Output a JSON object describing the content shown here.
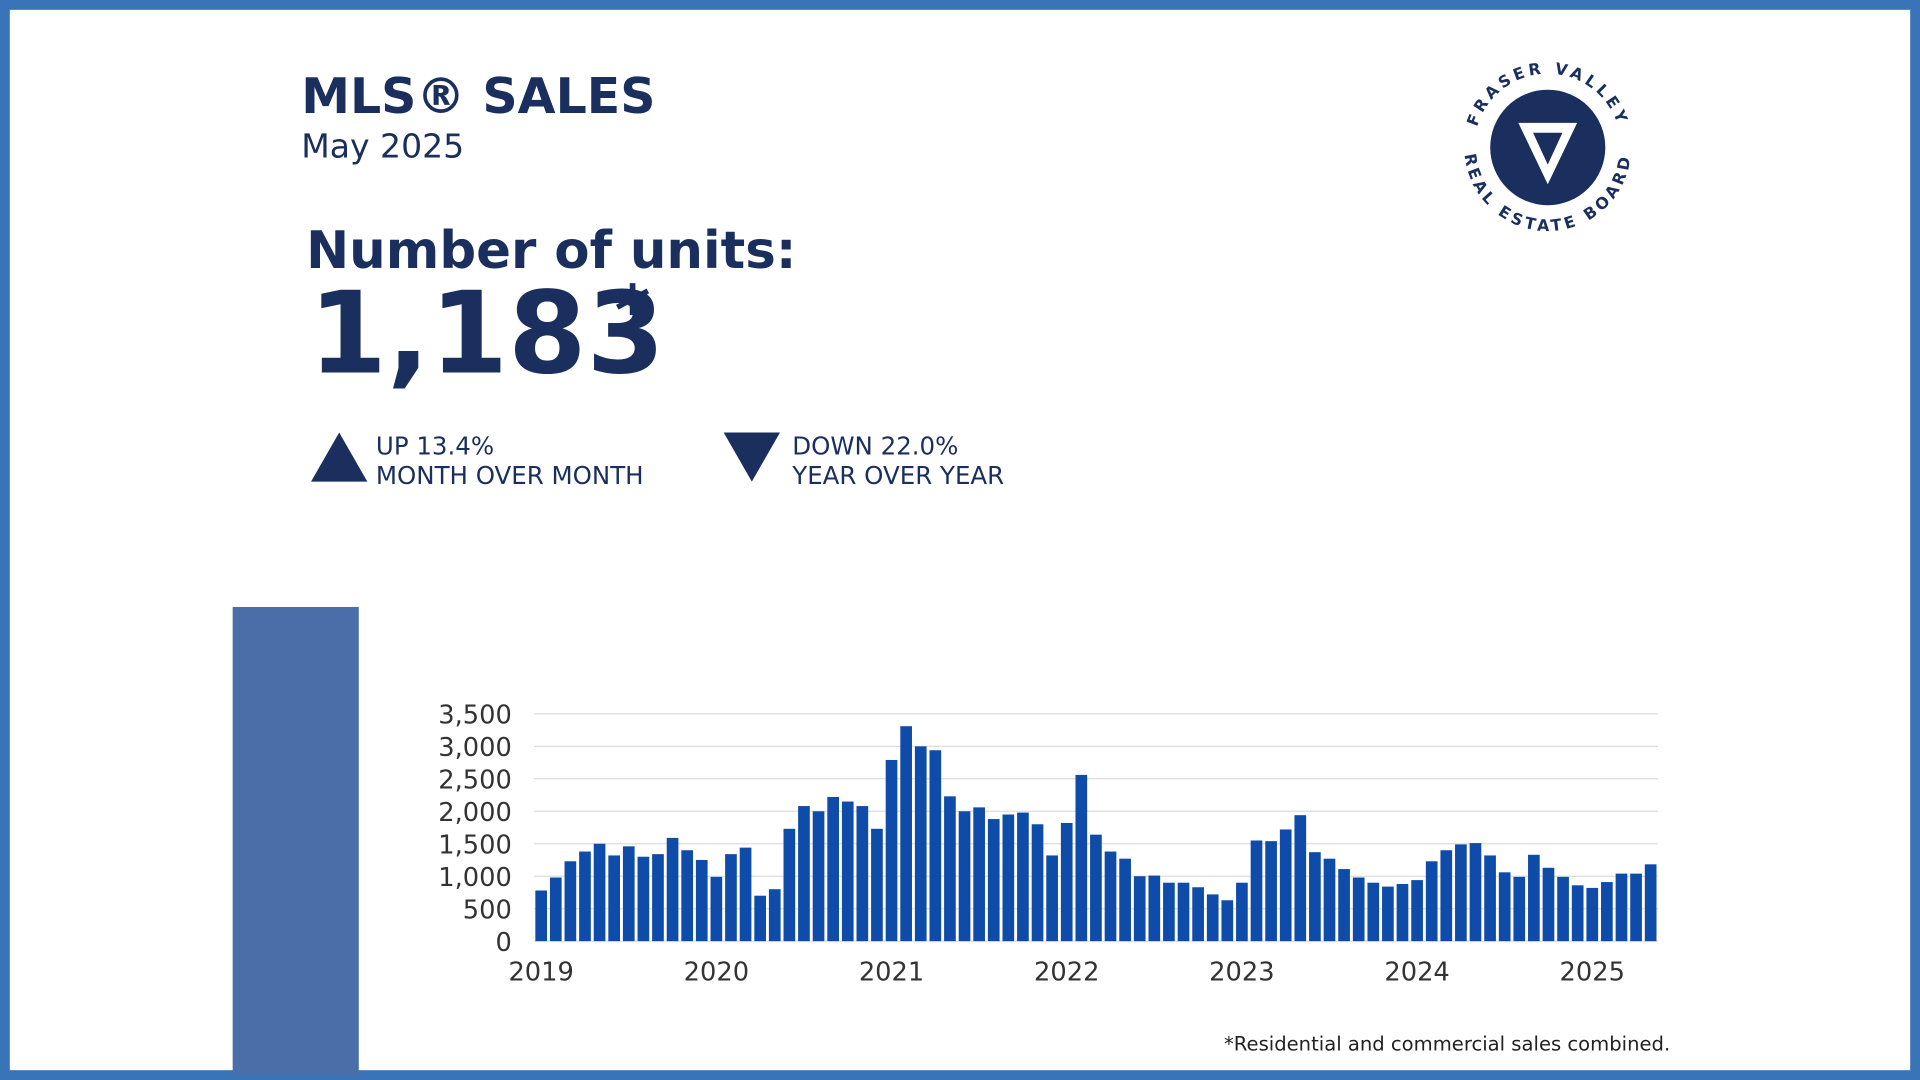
{
  "title": "MLS® SALES",
  "subtitle": "May 2025",
  "units_label": "Number of units:",
  "units_value": "1,183",
  "units_note_mark": "*",
  "stats": [
    {
      "change": "UP 13.4%",
      "period": "MONTH OVER MONTH"
    },
    {
      "change": "DOWN 22.0%",
      "period": "YEAR OVER YEAR"
    }
  ],
  "logo": {
    "top": "FRASER VALLEY",
    "bottom": "REAL ESTATE BOARD"
  },
  "footnote": "*Residential and commercial sales combined.",
  "chart_data": {
    "type": "bar",
    "color": "#0f4ba8",
    "grid": true,
    "categories": [
      "2019",
      null,
      null,
      null,
      null,
      null,
      null,
      null,
      null,
      null,
      null,
      null,
      "2020",
      null,
      null,
      null,
      null,
      null,
      null,
      null,
      null,
      null,
      null,
      null,
      "2021",
      null,
      null,
      null,
      null,
      null,
      null,
      null,
      null,
      null,
      null,
      null,
      "2022",
      null,
      null,
      null,
      null,
      null,
      null,
      null,
      null,
      null,
      null,
      null,
      "2023",
      null,
      null,
      null,
      null,
      null,
      null,
      null,
      null,
      null,
      null,
      null,
      "2024",
      null,
      null,
      null,
      null,
      null,
      null,
      null,
      null,
      null,
      null,
      null,
      "2025",
      null,
      null,
      null,
      null
    ],
    "values": [
      780,
      980,
      1230,
      1380,
      1500,
      1320,
      1460,
      1300,
      1340,
      1590,
      1400,
      1250,
      990,
      1340,
      1440,
      700,
      800,
      1730,
      2080,
      2000,
      2220,
      2150,
      2080,
      1730,
      2790,
      3310,
      3000,
      2940,
      2230,
      2000,
      2060,
      1880,
      1950,
      1980,
      1800,
      1320,
      1820,
      2560,
      1640,
      1380,
      1270,
      1000,
      1010,
      900,
      900,
      830,
      720,
      630,
      900,
      1550,
      1540,
      1720,
      1940,
      1370,
      1270,
      1110,
      980,
      900,
      840,
      880,
      940,
      1230,
      1400,
      1490,
      1510,
      1320,
      1060,
      990,
      1330,
      1130,
      990,
      860,
      820,
      910,
      1040,
      1040,
      1183
    ],
    "ylim": [
      0,
      3500
    ],
    "yticks": [
      0,
      500,
      {
        "value": 1000,
        "label": "1,000"
      },
      {
        "value": 1500,
        "label": "1,500"
      },
      {
        "value": 2000,
        "label": "2,000"
      },
      {
        "value": 2500,
        "label": "2,500"
      },
      {
        "value": 3000,
        "label": "3,000"
      },
      {
        "value": 3500,
        "label": "3,500"
      }
    ]
  }
}
